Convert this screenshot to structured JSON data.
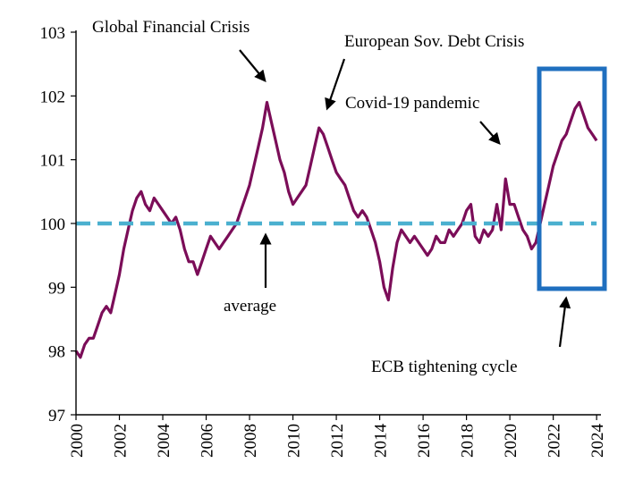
{
  "chart_data": {
    "type": "line",
    "title": "",
    "xlabel": "",
    "ylabel": "",
    "xlim": [
      2000,
      2024.2
    ],
    "ylim": [
      97,
      103
    ],
    "x_ticks": [
      "2000",
      "2002",
      "2004",
      "2006",
      "2008",
      "2010",
      "2012",
      "2014",
      "2016",
      "2018",
      "2020",
      "2022",
      "2024"
    ],
    "y_ticks": [
      "97",
      "98",
      "99",
      "100",
      "101",
      "102",
      "103"
    ],
    "grid": false,
    "legend": "none",
    "colors": {
      "series": "#7b0d58",
      "average": "#4bb0cf",
      "highlight_box": "#1f6fbf",
      "text": "#000000"
    },
    "average_line": {
      "y": 100.0,
      "label": "average"
    },
    "series": [
      {
        "x": [
          2000.0,
          2000.2,
          2000.4,
          2000.6,
          2000.8,
          2001.0,
          2001.2,
          2001.4,
          2001.6,
          2001.8,
          2002.0,
          2002.2,
          2002.4,
          2002.6,
          2002.8,
          2003.0,
          2003.2,
          2003.4,
          2003.6,
          2003.8,
          2004.0,
          2004.2,
          2004.4,
          2004.6,
          2004.8,
          2005.0,
          2005.2,
          2005.4,
          2005.6,
          2005.8,
          2006.0,
          2006.2,
          2006.4,
          2006.6,
          2006.8,
          2007.0,
          2007.2,
          2007.4,
          2007.6,
          2007.8,
          2008.0,
          2008.2,
          2008.4,
          2008.6,
          2008.8,
          2009.0,
          2009.2,
          2009.4,
          2009.6,
          2009.8,
          2010.0,
          2010.2,
          2010.4,
          2010.6,
          2010.8,
          2011.0,
          2011.2,
          2011.4,
          2011.6,
          2011.8,
          2012.0,
          2012.2,
          2012.4,
          2012.6,
          2012.8,
          2013.0,
          2013.2,
          2013.4,
          2013.6,
          2013.8,
          2014.0,
          2014.2,
          2014.4,
          2014.6,
          2014.8,
          2015.0,
          2015.2,
          2015.4,
          2015.6,
          2015.8,
          2016.0,
          2016.2,
          2016.4,
          2016.6,
          2016.8,
          2017.0,
          2017.2,
          2017.4,
          2017.6,
          2017.8,
          2018.0,
          2018.2,
          2018.4,
          2018.6,
          2018.8,
          2019.0,
          2019.2,
          2019.4,
          2019.6,
          2019.8,
          2020.0,
          2020.2,
          2020.4,
          2020.6,
          2020.8,
          2021.0,
          2021.2,
          2021.4,
          2021.6,
          2021.8,
          2022.0,
          2022.2,
          2022.4,
          2022.6,
          2022.8,
          2023.0,
          2023.2,
          2023.4,
          2023.6,
          2023.8,
          2024.0
        ],
        "y": [
          98.0,
          97.9,
          98.1,
          98.2,
          98.2,
          98.4,
          98.6,
          98.7,
          98.6,
          98.9,
          99.2,
          99.6,
          99.9,
          100.2,
          100.4,
          100.5,
          100.3,
          100.2,
          100.4,
          100.3,
          100.2,
          100.1,
          100.0,
          100.1,
          99.9,
          99.6,
          99.4,
          99.4,
          99.2,
          99.4,
          99.6,
          99.8,
          99.7,
          99.6,
          99.7,
          99.8,
          99.9,
          100.0,
          100.2,
          100.4,
          100.6,
          100.9,
          101.2,
          101.5,
          101.9,
          101.6,
          101.3,
          101.0,
          100.8,
          100.5,
          100.3,
          100.4,
          100.5,
          100.6,
          100.9,
          101.2,
          101.5,
          101.4,
          101.2,
          101.0,
          100.8,
          100.7,
          100.6,
          100.4,
          100.2,
          100.1,
          100.2,
          100.1,
          99.9,
          99.7,
          99.4,
          99.0,
          98.8,
          99.3,
          99.7,
          99.9,
          99.8,
          99.7,
          99.8,
          99.7,
          99.6,
          99.5,
          99.6,
          99.8,
          99.7,
          99.7,
          99.9,
          99.8,
          99.9,
          100.0,
          100.2,
          100.3,
          99.8,
          99.7,
          99.9,
          99.8,
          99.9,
          100.3,
          99.9,
          100.7,
          100.3,
          100.3,
          100.1,
          99.9,
          99.8,
          99.6,
          99.7,
          100.0,
          100.3,
          100.6,
          100.9,
          101.1,
          101.3,
          101.4,
          101.6,
          101.8,
          101.9,
          101.7,
          101.5,
          101.4,
          101.3
        ]
      }
    ],
    "annotations": [
      {
        "text": "Global Financial Crisis"
      },
      {
        "text": "European Sov. Debt Crisis"
      },
      {
        "text": "Covid-19 pandemic"
      },
      {
        "text": "average"
      },
      {
        "text": "ECB tightening cycle"
      }
    ]
  }
}
